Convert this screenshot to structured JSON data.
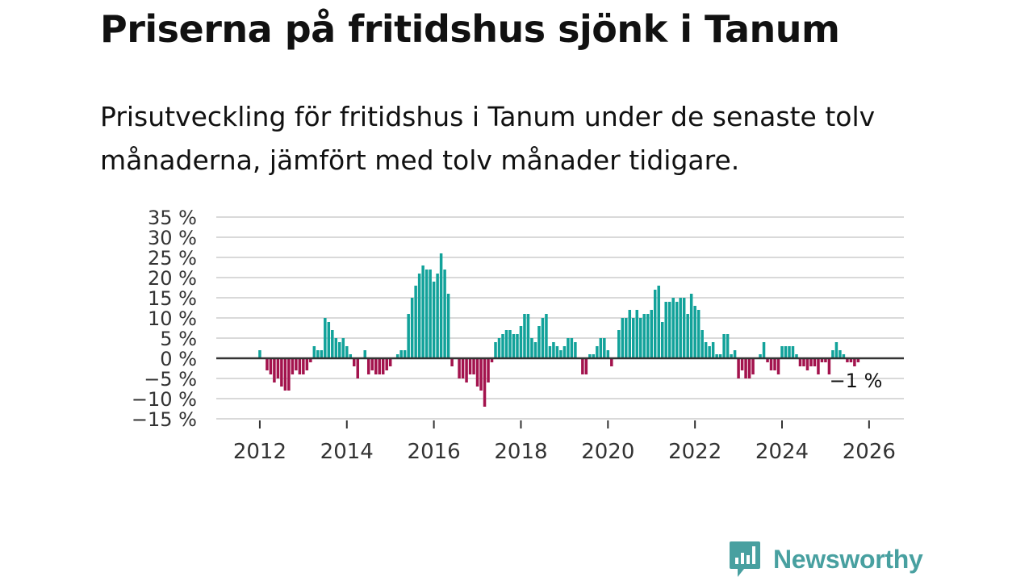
{
  "header": {
    "title": "Priserna på fritidshus sjönk i Tanum",
    "subtitle": "Prisutveckling för fritidshus i Tanum under de senaste tolv månaderna, jämfört med tolv månader tidigare."
  },
  "brand": {
    "name": "Newsworthy",
    "color": "#48a0a0"
  },
  "colors": {
    "positive": "#12a29a",
    "negative": "#a3134d",
    "grid": "#d9d9d9",
    "zero": "#333333"
  },
  "chart_data": {
    "type": "bar",
    "title": "Priserna på fritidshus sjönk i Tanum",
    "ylabel": "",
    "xlabel": "",
    "ylim": [
      -15,
      35
    ],
    "xlim": [
      2011.0,
      2026.8
    ],
    "yticks": [
      35,
      30,
      25,
      20,
      15,
      10,
      5,
      0,
      -5,
      -10,
      -15
    ],
    "ytick_labels": [
      "35 %",
      "30 %",
      "25 %",
      "20 %",
      "15 %",
      "10 %",
      "5 %",
      "0 %",
      "−5 %",
      "−10 %",
      "−15 %"
    ],
    "xticks": [
      2012,
      2014,
      2016,
      2018,
      2020,
      2022,
      2024,
      2026
    ],
    "xtick_labels": [
      "2012",
      "2014",
      "2016",
      "2018",
      "2020",
      "2022",
      "2024",
      "2026"
    ],
    "start": {
      "year": 2012,
      "month": 1
    },
    "values": [
      2,
      0,
      -3,
      -4,
      -6,
      -5,
      -7,
      -8,
      -8,
      -4,
      -3,
      -4,
      -4,
      -3,
      -1,
      3,
      2,
      2,
      10,
      9,
      7,
      5,
      4,
      5,
      3,
      1,
      -2,
      -5,
      0,
      2,
      -4,
      -3,
      -4,
      -4,
      -4,
      -3,
      -2,
      0,
      1,
      2,
      2,
      11,
      15,
      18,
      21,
      23,
      22,
      22,
      19,
      21,
      26,
      22,
      16,
      -2,
      0,
      -5,
      -5,
      -6,
      -4,
      -4,
      -7,
      -8,
      -12,
      -6,
      -1,
      4,
      5,
      6,
      7,
      7,
      6,
      6,
      8,
      11,
      11,
      5,
      4,
      8,
      10,
      11,
      3,
      4,
      3,
      2,
      3,
      5,
      5,
      4,
      0,
      -4,
      -4,
      1,
      1,
      3,
      5,
      5,
      2,
      -2,
      0,
      7,
      10,
      10,
      12,
      10,
      12,
      10,
      11,
      11,
      12,
      17,
      18,
      9,
      14,
      14,
      15,
      14,
      15,
      15,
      11,
      16,
      13,
      12,
      7,
      4,
      3,
      4,
      1,
      1,
      6,
      6,
      1,
      2,
      -5,
      -3,
      -5,
      -5,
      -4,
      0,
      1,
      4,
      -1,
      -3,
      -3,
      -4,
      3,
      3,
      3,
      3,
      1,
      -2,
      -2,
      -3,
      -2,
      -2,
      -4,
      -1,
      -1,
      -4,
      2,
      4,
      2,
      1,
      -1,
      -1,
      -2,
      -1
    ],
    "last_value_label": "−1 %"
  }
}
